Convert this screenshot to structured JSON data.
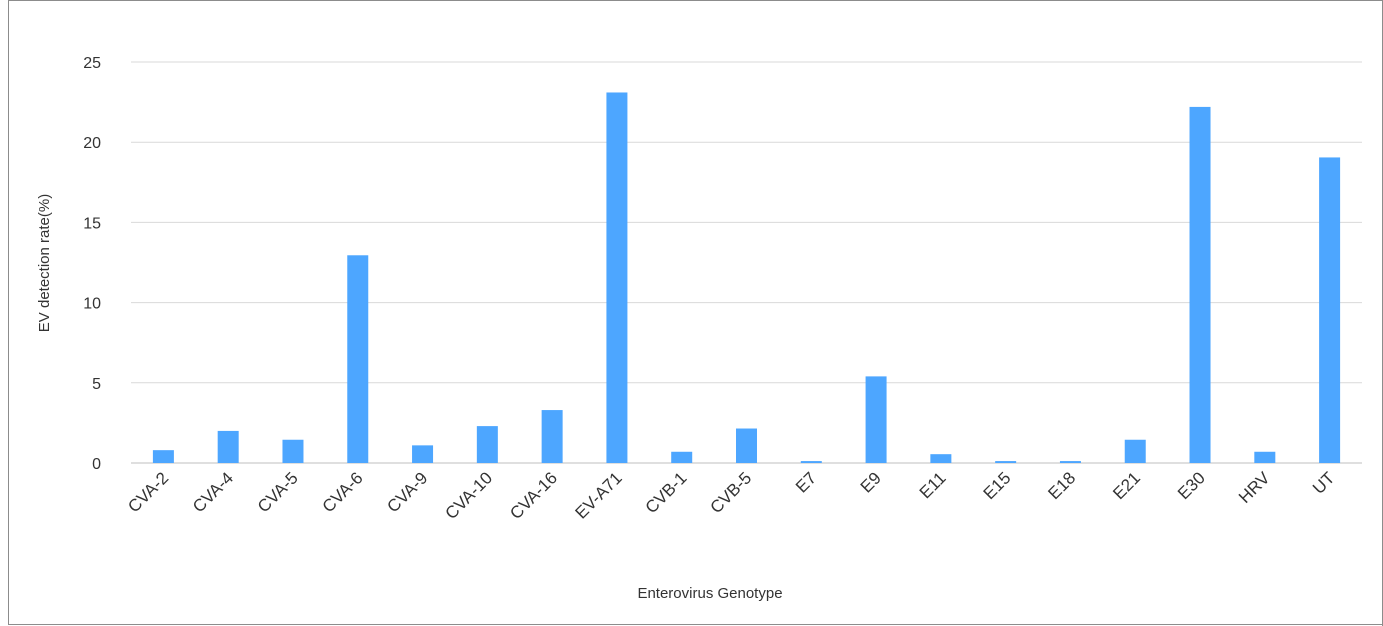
{
  "chart_data": {
    "type": "bar",
    "title": "",
    "xlabel": "Enterovirus Genotype",
    "ylabel": "EV detection rate(%)",
    "ylim": [
      0,
      25
    ],
    "yticks": [
      "0",
      "5",
      "10",
      "15",
      "20",
      "25"
    ],
    "grid": "horizontal",
    "legend": "none",
    "bar_color": "#4da6ff",
    "categories": [
      "CVA-2",
      "CVA-4",
      "CVA-5",
      "CVA-6",
      "CVA-9",
      "CVA-10",
      "CVA-16",
      "EV-A71",
      "CVB-1",
      "CVB-5",
      "E7",
      "E9",
      "E11",
      "E15",
      "E18",
      "E21",
      "E30",
      "HRV",
      "UT"
    ],
    "values": [
      0.8,
      2.0,
      1.45,
      12.95,
      1.1,
      2.3,
      3.3,
      23.1,
      0.7,
      2.15,
      0.12,
      5.4,
      0.55,
      0.12,
      0.12,
      1.45,
      22.2,
      0.7,
      19.05
    ]
  }
}
